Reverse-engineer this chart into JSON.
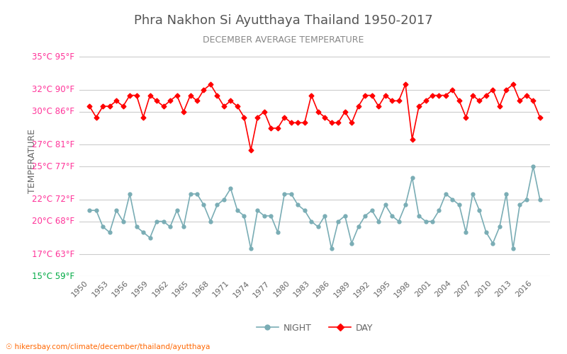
{
  "title": "Phra Nakhon Si Ayutthaya Thailand 1950-2017",
  "subtitle": "DECEMBER AVERAGE TEMPERATURE",
  "ylabel": "TEMPERATURE",
  "xlabel_url": "hikersbay.com/climate/december/thailand/ayutthaya",
  "yticks_celsius": [
    15,
    17,
    20,
    22,
    25,
    27,
    30,
    32,
    35
  ],
  "yticks_fahrenheit": [
    59,
    63,
    68,
    72,
    77,
    81,
    86,
    90,
    95
  ],
  "years": [
    1950,
    1951,
    1952,
    1953,
    1954,
    1955,
    1956,
    1957,
    1958,
    1959,
    1960,
    1961,
    1962,
    1963,
    1964,
    1965,
    1966,
    1967,
    1968,
    1969,
    1970,
    1971,
    1972,
    1973,
    1974,
    1975,
    1976,
    1977,
    1978,
    1979,
    1980,
    1981,
    1982,
    1983,
    1984,
    1985,
    1986,
    1987,
    1988,
    1989,
    1990,
    1991,
    1992,
    1993,
    1994,
    1995,
    1996,
    1997,
    1998,
    1999,
    2000,
    2001,
    2002,
    2003,
    2004,
    2005,
    2006,
    2007,
    2008,
    2009,
    2010,
    2011,
    2012,
    2013,
    2014,
    2015,
    2016,
    2017
  ],
  "day_temps": [
    30.5,
    29.5,
    30.5,
    30.5,
    31.0,
    30.5,
    31.5,
    31.5,
    29.5,
    31.5,
    31.0,
    30.5,
    31.0,
    31.5,
    30.0,
    31.5,
    31.0,
    32.0,
    32.5,
    31.5,
    30.5,
    31.0,
    30.5,
    29.5,
    26.5,
    29.5,
    30.0,
    28.5,
    28.5,
    29.5,
    29.0,
    29.0,
    29.0,
    31.5,
    30.0,
    29.5,
    29.0,
    29.0,
    30.0,
    29.0,
    30.5,
    31.5,
    31.5,
    30.5,
    31.5,
    31.0,
    31.0,
    32.5,
    27.5,
    30.5,
    31.0,
    31.5,
    31.5,
    31.5,
    32.0,
    31.0,
    29.5,
    31.5,
    31.0,
    31.5,
    32.0,
    30.5,
    32.0,
    32.5,
    31.0,
    31.5,
    31.0,
    29.5
  ],
  "night_temps": [
    21.0,
    21.0,
    19.5,
    19.0,
    21.0,
    20.0,
    22.5,
    19.5,
    19.0,
    18.5,
    20.0,
    20.0,
    19.5,
    21.0,
    19.5,
    22.5,
    22.5,
    21.5,
    20.0,
    21.5,
    22.0,
    23.0,
    21.0,
    20.5,
    17.5,
    21.0,
    20.5,
    20.5,
    19.0,
    22.5,
    22.5,
    21.5,
    21.0,
    20.0,
    19.5,
    20.5,
    17.5,
    20.0,
    20.5,
    18.0,
    19.5,
    20.5,
    21.0,
    20.0,
    21.5,
    20.5,
    20.0,
    21.5,
    24.0,
    20.5,
    20.0,
    20.0,
    21.0,
    22.5,
    22.0,
    21.5,
    19.0,
    22.5,
    21.0,
    19.0,
    18.0,
    19.5,
    22.5,
    17.5,
    21.5,
    22.0,
    25.0,
    22.0
  ],
  "day_color": "#ff0000",
  "night_color": "#7aadb5",
  "title_color": "#555555",
  "subtitle_color": "#888888",
  "ylabel_color": "#666666",
  "ytick_color_main": "#ff3399",
  "ytick_color_bottom": "#00aa44",
  "grid_color": "#cccccc",
  "background_color": "#ffffff",
  "legend_night_label": "NIGHT",
  "legend_day_label": "DAY",
  "url_color": "#ff6600",
  "xtick_color": "#666666"
}
